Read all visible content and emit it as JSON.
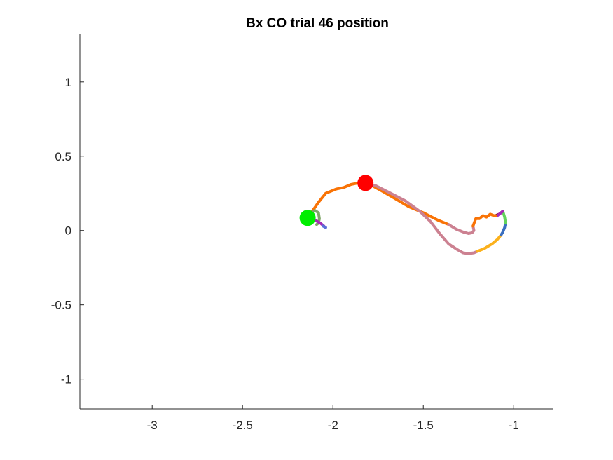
{
  "chart_data": {
    "type": "line",
    "title": "Bx  CO trial 46 position",
    "xlabel": "",
    "ylabel": "",
    "xlim": [
      -3.4,
      -0.78
    ],
    "ylim": [
      -1.2,
      1.32
    ],
    "xticks": [
      -3,
      -2.5,
      -2,
      -1.5,
      -1
    ],
    "xtick_labels": [
      "-3",
      "-2.5",
      "-2",
      "-1.5",
      "-1"
    ],
    "yticks": [
      -1,
      -0.5,
      0,
      0.5,
      1
    ],
    "ytick_labels": [
      "-1",
      "-0.5",
      "0",
      "0.5",
      "1"
    ],
    "grid": false,
    "axis_color": "#262626",
    "series": [
      {
        "color": "#f97306",
        "x": [
          -2.12,
          -2.08,
          -2.04,
          -1.98,
          -1.94,
          -1.9,
          -1.86,
          -1.82
        ],
        "y": [
          0.12,
          0.19,
          0.25,
          0.28,
          0.29,
          0.31,
          0.32,
          0.32
        ]
      },
      {
        "color": "#f97306",
        "x": [
          -1.82,
          -1.78,
          -1.72,
          -1.65,
          -1.58,
          -1.5,
          -1.42,
          -1.36
        ],
        "y": [
          0.32,
          0.3,
          0.26,
          0.21,
          0.16,
          0.12,
          0.07,
          0.04
        ]
      },
      {
        "color": "#cc8191",
        "x": [
          -1.82,
          -1.76,
          -1.68,
          -1.6,
          -1.52,
          -1.46,
          -1.41,
          -1.36,
          -1.31,
          -1.28,
          -1.25,
          -1.22,
          -1.2
        ],
        "y": [
          0.32,
          0.3,
          0.25,
          0.2,
          0.13,
          0.06,
          -0.02,
          -0.09,
          -0.13,
          -0.15,
          -0.155,
          -0.15,
          -0.14
        ]
      },
      {
        "color": "#cc8191",
        "x": [
          -1.36,
          -1.32,
          -1.28,
          -1.25,
          -1.23,
          -1.22,
          -1.225
        ],
        "y": [
          0.04,
          0.01,
          -0.01,
          -0.02,
          -0.015,
          0.0,
          0.03
        ]
      },
      {
        "color": "#fbb11c",
        "x": [
          -1.2,
          -1.16,
          -1.12,
          -1.09,
          -1.07
        ],
        "y": [
          -0.14,
          -0.12,
          -0.09,
          -0.06,
          -0.03
        ]
      },
      {
        "color": "#3b6fbf",
        "x": [
          -1.07,
          -1.06,
          -1.05,
          -1.045
        ],
        "y": [
          -0.03,
          -0.01,
          0.02,
          0.05
        ]
      },
      {
        "color": "#63d35b",
        "x": [
          -1.045,
          -1.05,
          -1.06
        ],
        "y": [
          0.05,
          0.09,
          0.13
        ]
      },
      {
        "color": "#7a0d2a",
        "x": [
          -1.06,
          -1.08,
          -1.1
        ],
        "y": [
          0.13,
          0.11,
          0.1
        ]
      },
      {
        "color": "#a52bb5",
        "x": [
          -1.06,
          -1.07,
          -1.09
        ],
        "y": [
          0.13,
          0.12,
          0.1
        ]
      },
      {
        "color": "#f97306",
        "x": [
          -1.225,
          -1.21,
          -1.19,
          -1.17,
          -1.15,
          -1.13,
          -1.11,
          -1.1
        ],
        "y": [
          0.03,
          0.08,
          0.08,
          0.1,
          0.09,
          0.11,
          0.1,
          0.1
        ]
      },
      {
        "color": "#7fa767",
        "x": [
          -2.12,
          -2.1,
          -2.08,
          -2.075,
          -2.08,
          -2.09
        ],
        "y": [
          0.12,
          0.135,
          0.12,
          0.08,
          0.05,
          0.04
        ]
      },
      {
        "color": "#a52bb5",
        "x": [
          -2.14,
          -2.1,
          -2.07,
          -2.05
        ],
        "y": [
          0.085,
          0.07,
          0.05,
          0.03
        ]
      },
      {
        "color": "#5a6fd8",
        "x": [
          -2.055,
          -2.04
        ],
        "y": [
          0.03,
          0.02
        ]
      }
    ],
    "markers": [
      {
        "color": "#00ee00",
        "x": -2.14,
        "y": 0.085
      },
      {
        "color": "#ff0000",
        "x": -1.82,
        "y": 0.32
      }
    ]
  }
}
